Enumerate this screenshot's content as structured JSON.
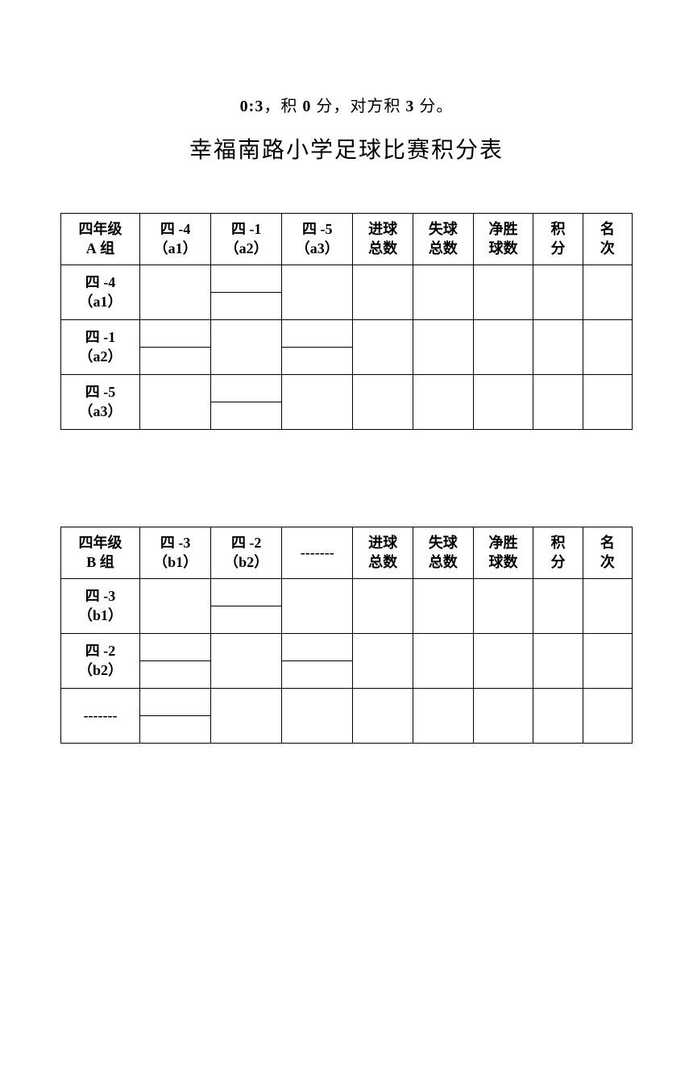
{
  "rule": {
    "score": "0:3",
    "text1": "，积 ",
    "points1": "0",
    "text2": " 分，对方积  ",
    "points2": "3",
    "text3": " 分。"
  },
  "title": "幸福南路小学足球比赛积分表",
  "tableA": {
    "headers": {
      "group": "四年级\nA 组",
      "col1": "四 -4\n（a1）",
      "col2": "四 -1\n（a2）",
      "col3": "四 -5\n（a3）",
      "goals": "进球\n总数",
      "conceded": "失球\n总数",
      "diff": "净胜\n球数",
      "points": "积\n分",
      "rank": "名\n次"
    },
    "rows": {
      "r1": "四 -4\n（a1）",
      "r2": "四 -1\n（a2）",
      "r3": "四 -5\n（a3）"
    }
  },
  "tableB": {
    "headers": {
      "group": "四年级\nB 组",
      "col1": "四 -3\n（b1）",
      "col2": "四 -2\n（b2）",
      "col3": "-------",
      "goals": "进球\n总数",
      "conceded": "失球\n总数",
      "diff": "净胜\n球数",
      "points": "积\n分",
      "rank": "名\n次"
    },
    "rows": {
      "r1": "四 -3\n（b1）",
      "r2": "四 -2\n（b2）",
      "r3": "-------"
    }
  }
}
